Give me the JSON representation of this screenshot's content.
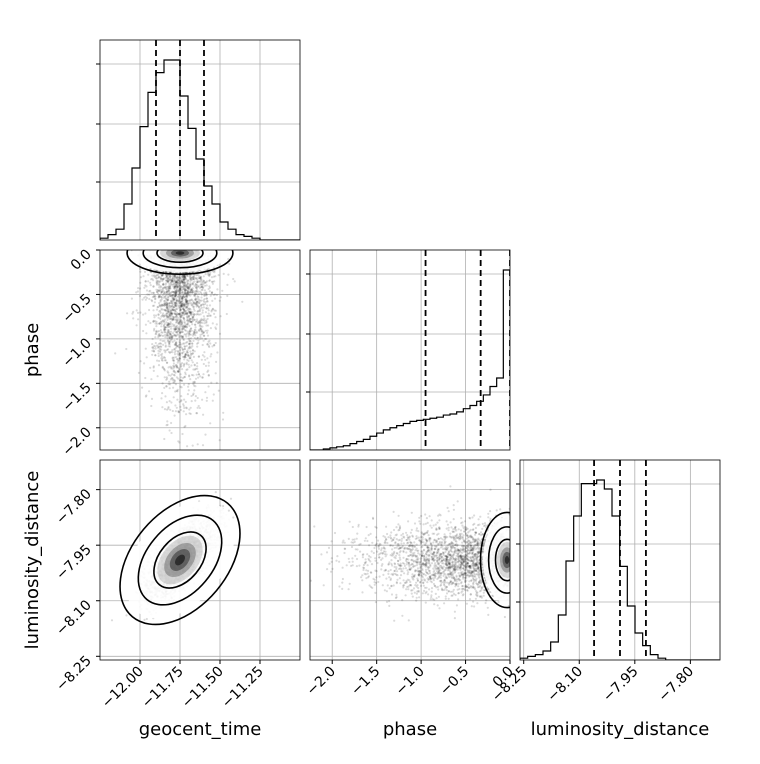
{
  "chart_data": {
    "type": "corner",
    "parameters": [
      {
        "name": "geocent_time",
        "label": "geocent_time",
        "range": [
          -12.25,
          -11.0
        ],
        "ticks": [
          -12.0,
          -11.75,
          -11.5,
          -11.25
        ],
        "tick_labels": [
          "−12.00",
          "−11.75",
          "−11.50",
          "−11.25"
        ],
        "quantiles": [
          -11.9,
          -11.75,
          -11.6
        ],
        "hist_bin_start": -12.25,
        "hist_bin_width": 0.05,
        "hist_density": [
          0.1,
          0.3,
          0.6,
          2.0,
          4.0,
          6.3,
          8.2,
          9.3,
          10.0,
          10.0,
          8.0,
          6.2,
          4.5,
          3.0,
          2.0,
          1.0,
          0.6,
          0.3,
          0.2,
          0.1,
          0.0,
          0.0,
          0.0,
          0.0,
          0.0
        ]
      },
      {
        "name": "phase",
        "label": "phase",
        "range": [
          -2.25,
          0.0
        ],
        "ticks": [
          -2.0,
          -1.5,
          -1.0,
          -0.5,
          0.0
        ],
        "tick_labels": [
          "−2.0",
          "−1.5",
          "−1.0",
          "−0.5",
          "0.0"
        ],
        "quantiles": [
          -0.95,
          -0.33,
          0.0
        ],
        "hist_bin_start": -2.25,
        "hist_bin_width": 0.075,
        "hist_density": [
          0.0,
          0.0,
          0.1,
          0.2,
          0.3,
          0.4,
          0.6,
          0.8,
          1.0,
          1.3,
          1.6,
          1.9,
          2.1,
          2.3,
          2.5,
          2.7,
          2.8,
          2.9,
          3.0,
          3.1,
          3.3,
          3.4,
          3.6,
          3.9,
          4.2,
          4.6,
          5.2,
          6.0,
          6.8,
          17.0
        ]
      },
      {
        "name": "luminosity_distance",
        "label": "luminosity_distance",
        "range": [
          -8.26,
          -7.72
        ],
        "ticks": [
          -8.25,
          -8.1,
          -7.95,
          -7.8
        ],
        "tick_labels": [
          "−8.25",
          "−8.10",
          "−7.95",
          "−7.80"
        ],
        "quantiles": [
          -8.06,
          -7.99,
          -7.92
        ],
        "hist_bin_start": -8.26,
        "hist_bin_width": 0.0207,
        "hist_density": [
          0.1,
          0.2,
          0.3,
          0.5,
          1.0,
          2.5,
          5.5,
          8.0,
          9.8,
          9.8,
          10.0,
          9.5,
          8.0,
          5.2,
          3.0,
          1.5,
          0.8,
          0.3,
          0.1,
          0.0,
          0.0,
          0.0,
          0.0,
          0.0,
          0.0,
          0.0
        ]
      }
    ],
    "posterior_means": [
      -11.75,
      -0.6,
      -7.99
    ],
    "posterior_stds": [
      0.1,
      0.55,
      0.05
    ],
    "correlations": {
      "0-1": 0.0,
      "0-2": 0.7,
      "1-2": 0.0
    },
    "yticks_marginal_hidden": true,
    "grid": true
  }
}
